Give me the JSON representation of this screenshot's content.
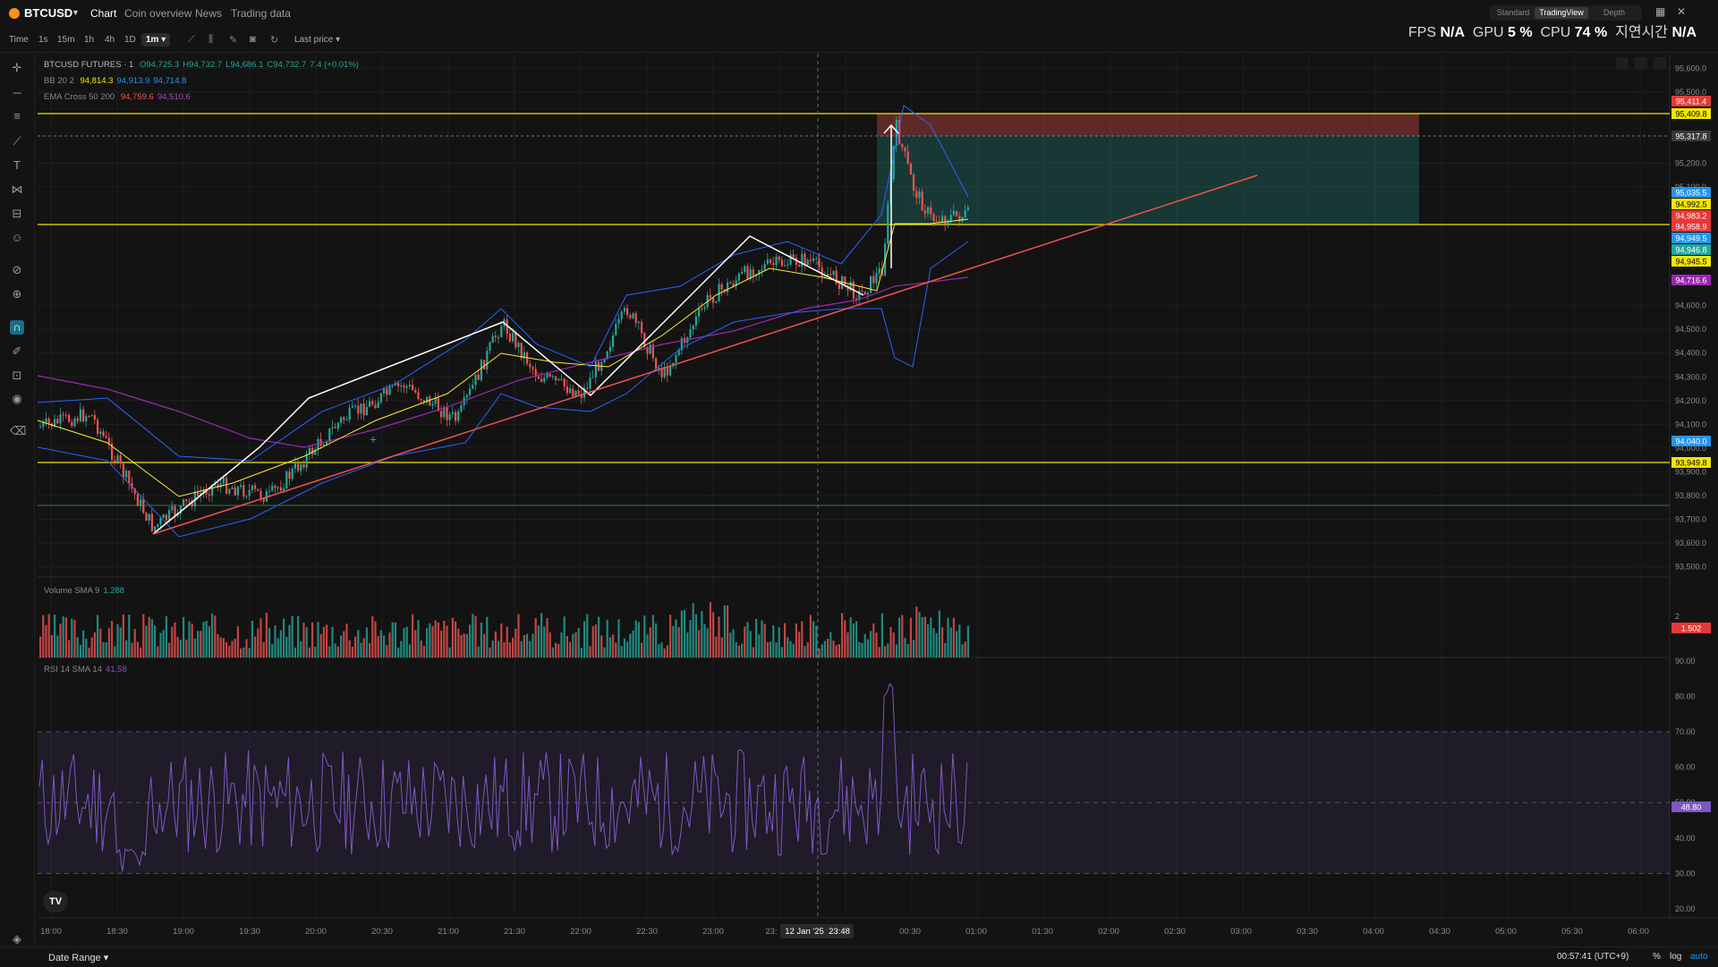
{
  "header": {
    "symbol": "BTCUSD",
    "tabs": [
      "Chart",
      "Coin overview",
      "News",
      "Trading data"
    ],
    "views": [
      "Standard",
      "TradingView",
      "Depth"
    ],
    "perf": {
      "fps_label": "FPS",
      "fps": "N/A",
      "gpu_label": "GPU",
      "gpu": "5 %",
      "cpu_label": "CPU",
      "cpu": "74 %",
      "latency_label": "지연시간",
      "latency": "N/A"
    }
  },
  "toolbar": {
    "time_label": "Time",
    "timeframes": [
      "1s",
      "15m",
      "1h",
      "4h",
      "1D",
      "1m"
    ],
    "active_timeframe": "1m",
    "price_source": "Last price"
  },
  "legends": {
    "main": {
      "title": "BTCUSD FUTURES · 1",
      "o": "O94,725.3",
      "h": "H94,732.7",
      "l": "L94,686.1",
      "c": "C94,732.7",
      "chg": "7.4 (+0.01%)"
    },
    "bb": {
      "name": "BB 20 2",
      "v1": "94,814.3",
      "v2": "94,913.9",
      "v3": "94,714.8"
    },
    "ema": {
      "name": "EMA Cross 50 200",
      "v1": "94,759.6",
      "v2": "94,510.6"
    },
    "volume": {
      "name": "Volume SMA 9",
      "v1": "1.288"
    },
    "rsi": {
      "name": "RSI 14 SMA 14",
      "v1": "41.58"
    }
  },
  "price_scale": {
    "ticks": [
      "95,600.0",
      "95,500.0",
      "95,200.0",
      "95,100.0",
      "94,600.0",
      "94,500.0",
      "94,400.0",
      "94,300.0",
      "94,200.0",
      "94,100.0",
      "94,000.0",
      "93,900.0",
      "93,800.0",
      "93,700.0",
      "93,600.0",
      "93,500.0"
    ],
    "badges": [
      {
        "text": "95,411.4",
        "color": "#e53935"
      },
      {
        "text": "95,409.8",
        "color": "#f2e600"
      },
      {
        "text": "95,317.8",
        "color": "#3a3a3a"
      },
      {
        "text": "95,035.5",
        "color": "#2196f3"
      },
      {
        "text": "94,992.5",
        "color": "#f2e600"
      },
      {
        "text": "94,983.2",
        "color": "#e53935"
      },
      {
        "text": "94,958.9",
        "color": "#e53935"
      },
      {
        "text": "94,949.5",
        "color": "#2196f3"
      },
      {
        "text": "94,946.8",
        "color": "#26a69a"
      },
      {
        "text": "94,945.5",
        "color": "#f2e600"
      },
      {
        "text": "94,716.6",
        "color": "#9c27b0"
      },
      {
        "text": "94,040.0",
        "color": "#2196f3"
      },
      {
        "text": "93,949.8",
        "color": "#f2e600"
      }
    ],
    "volume_ticks": [
      "2"
    ],
    "volume_badge": "1.502",
    "rsi_ticks": [
      "90.00",
      "80.00",
      "70.00",
      "60.00",
      "50.00",
      "40.00",
      "30.00",
      "20.00"
    ],
    "rsi_badge": "48.80"
  },
  "time_axis": {
    "labels": [
      "18:00",
      "18:30",
      "19:00",
      "19:30",
      "20:00",
      "20:30",
      "21:00",
      "21:30",
      "22:00",
      "22:30",
      "23:00",
      "23:",
      "00:30",
      "01:00",
      "01:30",
      "02:00",
      "02:30",
      "03:00",
      "03:30",
      "04:00",
      "04:30",
      "05:00",
      "05:30",
      "06:00"
    ],
    "crosshair_date": "12 Jan '25",
    "crosshair_time": "23:48"
  },
  "footer": {
    "date_range": "Date Range",
    "clock": "00:57:41 (UTC+9)",
    "percent": "%",
    "log": "log",
    "auto": "auto"
  },
  "colors": {
    "up": "#26a69a",
    "down": "#ef5350",
    "hline": "#f2e600",
    "trend": "#ef5350",
    "rsi": "#7e57c2",
    "bb": "#2962ff",
    "ema_fast": "#ffeb3b",
    "ema_slow": "#9c27b0"
  }
}
